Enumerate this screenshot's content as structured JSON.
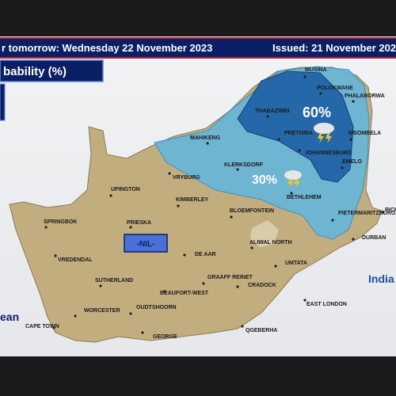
{
  "header": {
    "forecast": "r tomorrow: Wednesday 22 November 2023",
    "issued": "Issued: 21 November 202"
  },
  "legend": {
    "title": "bability (%)"
  },
  "map": {
    "zones": [
      {
        "label": "60%"
      },
      {
        "label": "30%"
      }
    ],
    "nil_label": "-NIL-",
    "cities": [
      {
        "name": "MUSINA"
      },
      {
        "name": "POLOKWANE"
      },
      {
        "name": "PHALABORWA"
      },
      {
        "name": "THABAZIMBI"
      },
      {
        "name": "MBOMBELA"
      },
      {
        "name": "PRETORIA"
      },
      {
        "name": "MAHIKENG"
      },
      {
        "name": "JOHANNESBURG"
      },
      {
        "name": "EMELO"
      },
      {
        "name": "KLERKSDORP"
      },
      {
        "name": "VRYBURG"
      },
      {
        "name": "BETHLEHEM"
      },
      {
        "name": "UPINGTON"
      },
      {
        "name": "KIMBERLEY"
      },
      {
        "name": "BLOEMFONTEIN"
      },
      {
        "name": "PIETERMARITZBURG"
      },
      {
        "name": "RICH"
      },
      {
        "name": "SPRINGBOK"
      },
      {
        "name": "PRIESKA"
      },
      {
        "name": "DURBAN"
      },
      {
        "name": "ALIWAL NORTH"
      },
      {
        "name": "DE AAR"
      },
      {
        "name": "VREDENDAL"
      },
      {
        "name": "UMTATA"
      },
      {
        "name": "SUTHERLAND"
      },
      {
        "name": "GRAAFF REINET"
      },
      {
        "name": "CRADOCK"
      },
      {
        "name": "BEAUFORT-WEST"
      },
      {
        "name": "OUDTSHOORN"
      },
      {
        "name": "EAST LONDON"
      },
      {
        "name": "WORCESTER"
      },
      {
        "name": "CAPE TOWN"
      },
      {
        "name": "GEORGE"
      },
      {
        "name": "QGEBERHA"
      }
    ],
    "oceans": [
      {
        "name": "India"
      },
      {
        "name": "ean"
      }
    ]
  }
}
